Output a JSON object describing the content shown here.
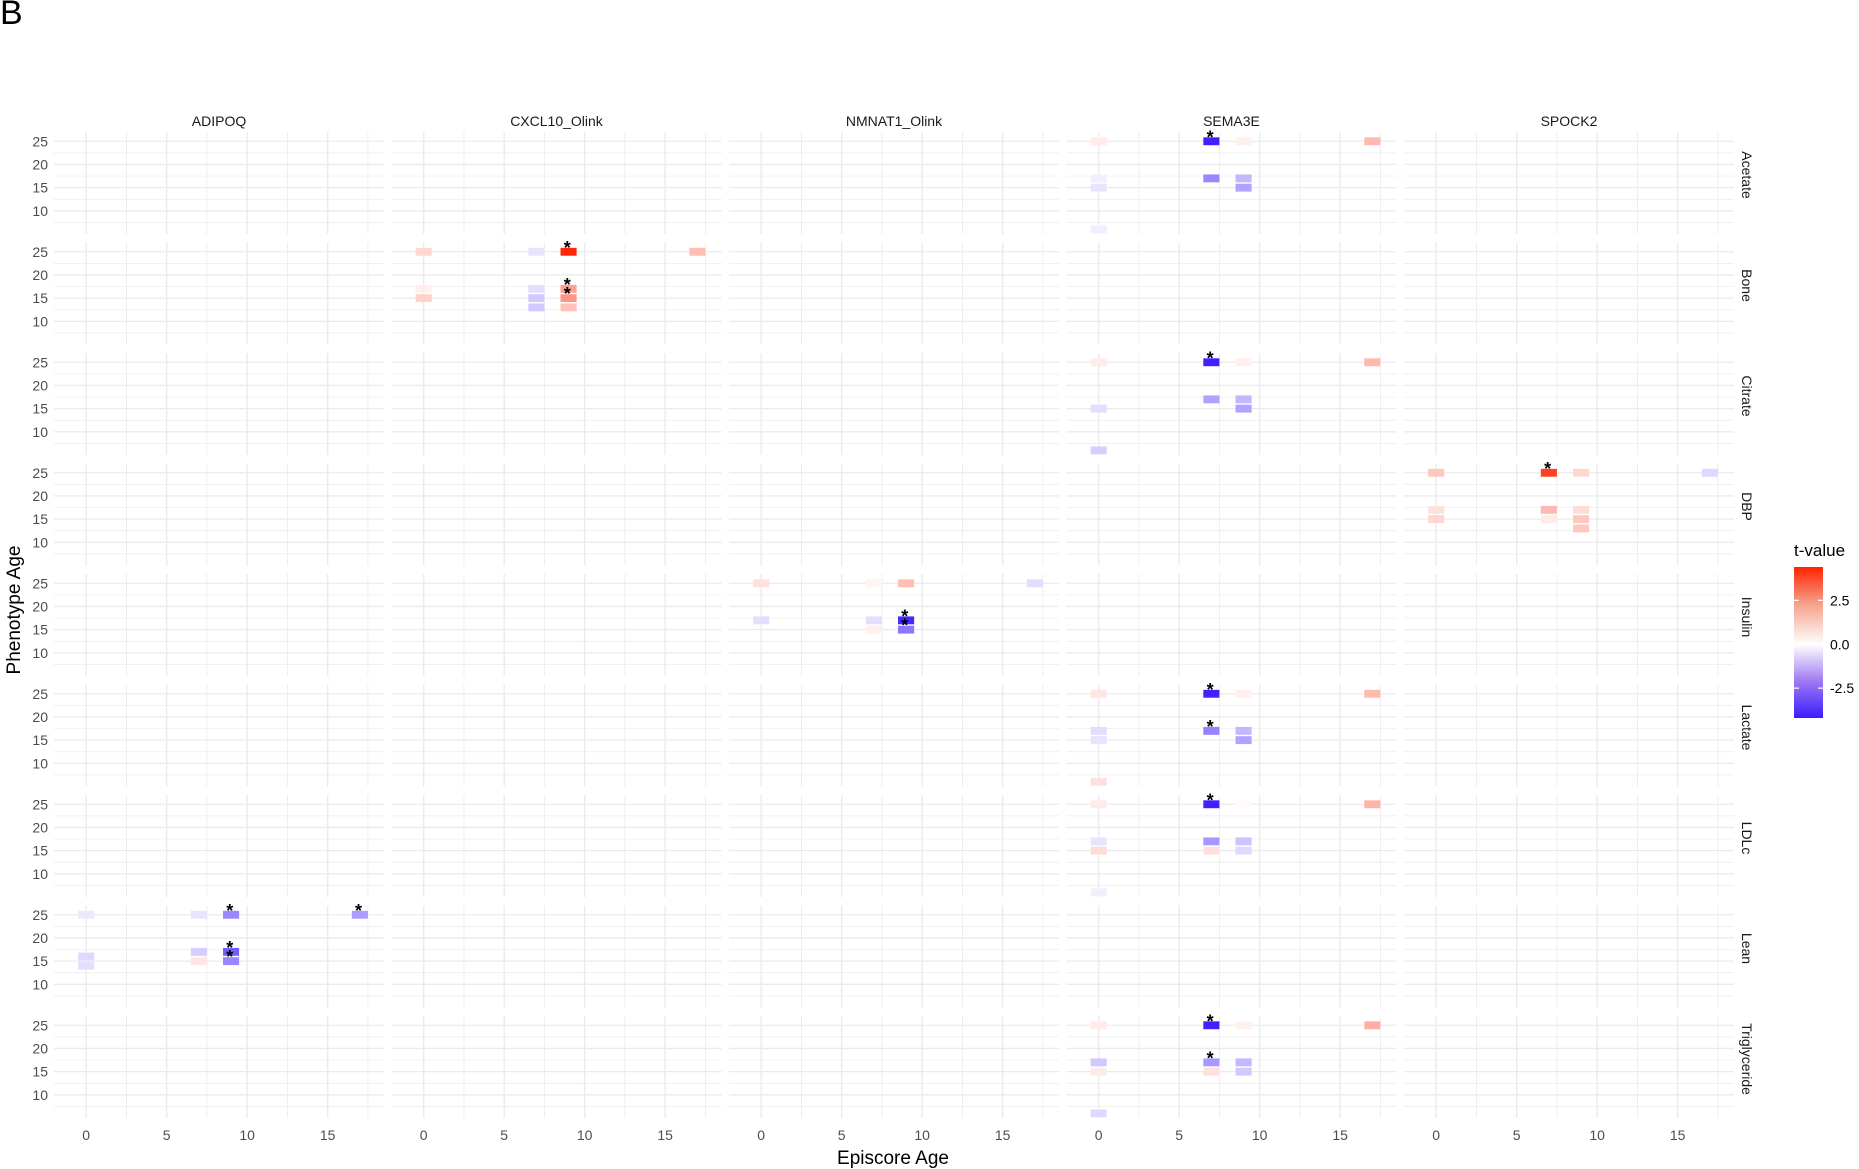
{
  "panel_label": "B",
  "chart_data": {
    "type": "heatmap",
    "xlabel": "Episcore Age",
    "ylabel": "Phenotype Age",
    "x_ticks": [
      0,
      5,
      10,
      15
    ],
    "y_ticks": [
      10,
      15,
      20,
      25
    ],
    "xlim": [
      -2,
      18.5
    ],
    "ylim": [
      5,
      27
    ],
    "x_grid_values": [
      0,
      2.5,
      5,
      7.5,
      10,
      12.5,
      15,
      17.5
    ],
    "y_grid_values": [
      7.5,
      10,
      12.5,
      15,
      17.5,
      20,
      22.5,
      25
    ],
    "column_facets": [
      "ADIPOQ",
      "CXCL10_Olink",
      "NMNAT1_Olink",
      "SEMA3E",
      "SPOCK2"
    ],
    "row_facets": [
      "Acetate",
      "Bone",
      "Citrate",
      "DBP",
      "Insulin",
      "Lactate",
      "LDLc",
      "Lean",
      "Triglyceride"
    ],
    "legend": {
      "title": "t-value",
      "ticks": [
        -2.5,
        0.0,
        2.5
      ],
      "tick_labels": [
        "-2.5",
        "0.0",
        "2.5"
      ],
      "range": [
        -4.2,
        4.4
      ],
      "low_color": "#3B1BFF",
      "mid_color": "#FFFFFF",
      "high_color": "#FF2200",
      "placement": "right"
    },
    "tiles": [
      {
        "col": "ADIPOQ",
        "row": "Lean",
        "x": 0,
        "y": 25,
        "t": -0.4,
        "sig": false
      },
      {
        "col": "ADIPOQ",
        "row": "Lean",
        "x": 0,
        "y": 16,
        "t": -0.7,
        "sig": false
      },
      {
        "col": "ADIPOQ",
        "row": "Lean",
        "x": 0,
        "y": 14,
        "t": -0.6,
        "sig": false
      },
      {
        "col": "ADIPOQ",
        "row": "Lean",
        "x": 7,
        "y": 25,
        "t": -0.5,
        "sig": false
      },
      {
        "col": "ADIPOQ",
        "row": "Lean",
        "x": 7,
        "y": 17,
        "t": -0.9,
        "sig": false
      },
      {
        "col": "ADIPOQ",
        "row": "Lean",
        "x": 7,
        "y": 15,
        "t": 0.5,
        "sig": false
      },
      {
        "col": "ADIPOQ",
        "row": "Lean",
        "x": 9,
        "y": 25,
        "t": -2.2,
        "sig": true
      },
      {
        "col": "ADIPOQ",
        "row": "Lean",
        "x": 9,
        "y": 17,
        "t": -3.0,
        "sig": true
      },
      {
        "col": "ADIPOQ",
        "row": "Lean",
        "x": 9,
        "y": 15,
        "t": -2.2,
        "sig": true
      },
      {
        "col": "ADIPOQ",
        "row": "Lean",
        "x": 17,
        "y": 25,
        "t": -1.8,
        "sig": true
      },
      {
        "col": "CXCL10_Olink",
        "row": "Bone",
        "x": 0,
        "y": 25,
        "t": 0.8,
        "sig": false
      },
      {
        "col": "CXCL10_Olink",
        "row": "Bone",
        "x": 0,
        "y": 17,
        "t": 0.3,
        "sig": false
      },
      {
        "col": "CXCL10_Olink",
        "row": "Bone",
        "x": 0,
        "y": 15,
        "t": 0.9,
        "sig": false
      },
      {
        "col": "CXCL10_Olink",
        "row": "Bone",
        "x": 7,
        "y": 25,
        "t": -0.5,
        "sig": false
      },
      {
        "col": "CXCL10_Olink",
        "row": "Bone",
        "x": 7,
        "y": 17,
        "t": -0.6,
        "sig": false
      },
      {
        "col": "CXCL10_Olink",
        "row": "Bone",
        "x": 7,
        "y": 15,
        "t": -1.0,
        "sig": false
      },
      {
        "col": "CXCL10_Olink",
        "row": "Bone",
        "x": 7,
        "y": 13,
        "t": -1.0,
        "sig": false
      },
      {
        "col": "CXCL10_Olink",
        "row": "Bone",
        "x": 9,
        "y": 25,
        "t": 4.3,
        "sig": true
      },
      {
        "col": "CXCL10_Olink",
        "row": "Bone",
        "x": 9,
        "y": 17,
        "t": 1.9,
        "sig": true
      },
      {
        "col": "CXCL10_Olink",
        "row": "Bone",
        "x": 9,
        "y": 15,
        "t": 2.1,
        "sig": true
      },
      {
        "col": "CXCL10_Olink",
        "row": "Bone",
        "x": 9,
        "y": 13,
        "t": 1.2,
        "sig": false
      },
      {
        "col": "CXCL10_Olink",
        "row": "Bone",
        "x": 17,
        "y": 25,
        "t": 1.3,
        "sig": false
      },
      {
        "col": "NMNAT1_Olink",
        "row": "Insulin",
        "x": 0,
        "y": 25,
        "t": 0.6,
        "sig": false
      },
      {
        "col": "NMNAT1_Olink",
        "row": "Insulin",
        "x": 0,
        "y": 17,
        "t": -0.6,
        "sig": false
      },
      {
        "col": "NMNAT1_Olink",
        "row": "Insulin",
        "x": 7,
        "y": 25,
        "t": 0.2,
        "sig": false
      },
      {
        "col": "NMNAT1_Olink",
        "row": "Insulin",
        "x": 7,
        "y": 17,
        "t": -0.6,
        "sig": false
      },
      {
        "col": "NMNAT1_Olink",
        "row": "Insulin",
        "x": 7,
        "y": 15,
        "t": 0.3,
        "sig": false
      },
      {
        "col": "NMNAT1_Olink",
        "row": "Insulin",
        "x": 9,
        "y": 25,
        "t": 1.3,
        "sig": false
      },
      {
        "col": "NMNAT1_Olink",
        "row": "Insulin",
        "x": 9,
        "y": 17,
        "t": -4.0,
        "sig": true
      },
      {
        "col": "NMNAT1_Olink",
        "row": "Insulin",
        "x": 9,
        "y": 15,
        "t": -2.5,
        "sig": true
      },
      {
        "col": "NMNAT1_Olink",
        "row": "Insulin",
        "x": 17,
        "y": 25,
        "t": -0.6,
        "sig": false
      },
      {
        "col": "SEMA3E",
        "row": "Acetate",
        "x": 0,
        "y": 25,
        "t": 0.4,
        "sig": false
      },
      {
        "col": "SEMA3E",
        "row": "Acetate",
        "x": 0,
        "y": 17,
        "t": -0.3,
        "sig": false
      },
      {
        "col": "SEMA3E",
        "row": "Acetate",
        "x": 0,
        "y": 15,
        "t": -0.5,
        "sig": false
      },
      {
        "col": "SEMA3E",
        "row": "Acetate",
        "x": 0,
        "y": 6,
        "t": -0.3,
        "sig": false
      },
      {
        "col": "SEMA3E",
        "row": "Acetate",
        "x": 7,
        "y": 25,
        "t": -4.1,
        "sig": true
      },
      {
        "col": "SEMA3E",
        "row": "Acetate",
        "x": 7,
        "y": 17,
        "t": -2.2,
        "sig": false
      },
      {
        "col": "SEMA3E",
        "row": "Acetate",
        "x": 9,
        "y": 25,
        "t": 0.3,
        "sig": false
      },
      {
        "col": "SEMA3E",
        "row": "Acetate",
        "x": 9,
        "y": 17,
        "t": -1.3,
        "sig": false
      },
      {
        "col": "SEMA3E",
        "row": "Acetate",
        "x": 9,
        "y": 15,
        "t": -1.7,
        "sig": false
      },
      {
        "col": "SEMA3E",
        "row": "Acetate",
        "x": 17,
        "y": 25,
        "t": 1.4,
        "sig": false
      },
      {
        "col": "SEMA3E",
        "row": "Citrate",
        "x": 0,
        "y": 25,
        "t": 0.4,
        "sig": false
      },
      {
        "col": "SEMA3E",
        "row": "Citrate",
        "x": 0,
        "y": 15,
        "t": -0.6,
        "sig": false
      },
      {
        "col": "SEMA3E",
        "row": "Citrate",
        "x": 0,
        "y": 6,
        "t": -0.9,
        "sig": false
      },
      {
        "col": "SEMA3E",
        "row": "Citrate",
        "x": 7,
        "y": 25,
        "t": -4.1,
        "sig": true
      },
      {
        "col": "SEMA3E",
        "row": "Citrate",
        "x": 7,
        "y": 17,
        "t": -1.7,
        "sig": false
      },
      {
        "col": "SEMA3E",
        "row": "Citrate",
        "x": 9,
        "y": 25,
        "t": 0.3,
        "sig": false
      },
      {
        "col": "SEMA3E",
        "row": "Citrate",
        "x": 9,
        "y": 17,
        "t": -1.3,
        "sig": false
      },
      {
        "col": "SEMA3E",
        "row": "Citrate",
        "x": 9,
        "y": 15,
        "t": -1.7,
        "sig": false
      },
      {
        "col": "SEMA3E",
        "row": "Citrate",
        "x": 17,
        "y": 25,
        "t": 1.4,
        "sig": false
      },
      {
        "col": "SEMA3E",
        "row": "Lactate",
        "x": 0,
        "y": 25,
        "t": 0.5,
        "sig": false
      },
      {
        "col": "SEMA3E",
        "row": "Lactate",
        "x": 0,
        "y": 17,
        "t": -0.6,
        "sig": false
      },
      {
        "col": "SEMA3E",
        "row": "Lactate",
        "x": 0,
        "y": 15,
        "t": -0.5,
        "sig": false
      },
      {
        "col": "SEMA3E",
        "row": "Lactate",
        "x": 0,
        "y": 6,
        "t": 0.6,
        "sig": false
      },
      {
        "col": "SEMA3E",
        "row": "Lactate",
        "x": 7,
        "y": 25,
        "t": -4.1,
        "sig": true
      },
      {
        "col": "SEMA3E",
        "row": "Lactate",
        "x": 7,
        "y": 17,
        "t": -2.3,
        "sig": true
      },
      {
        "col": "SEMA3E",
        "row": "Lactate",
        "x": 9,
        "y": 25,
        "t": 0.3,
        "sig": false
      },
      {
        "col": "SEMA3E",
        "row": "Lactate",
        "x": 9,
        "y": 17,
        "t": -1.3,
        "sig": false
      },
      {
        "col": "SEMA3E",
        "row": "Lactate",
        "x": 9,
        "y": 15,
        "t": -1.7,
        "sig": false
      },
      {
        "col": "SEMA3E",
        "row": "Lactate",
        "x": 17,
        "y": 25,
        "t": 1.4,
        "sig": false
      },
      {
        "col": "SEMA3E",
        "row": "LDLc",
        "x": 0,
        "y": 25,
        "t": 0.4,
        "sig": false
      },
      {
        "col": "SEMA3E",
        "row": "LDLc",
        "x": 0,
        "y": 17,
        "t": -0.5,
        "sig": false
      },
      {
        "col": "SEMA3E",
        "row": "LDLc",
        "x": 0,
        "y": 15,
        "t": 0.7,
        "sig": false
      },
      {
        "col": "SEMA3E",
        "row": "LDLc",
        "x": 0,
        "y": 6,
        "t": -0.3,
        "sig": false
      },
      {
        "col": "SEMA3E",
        "row": "LDLc",
        "x": 7,
        "y": 25,
        "t": -4.1,
        "sig": true
      },
      {
        "col": "SEMA3E",
        "row": "LDLc",
        "x": 7,
        "y": 17,
        "t": -1.9,
        "sig": false
      },
      {
        "col": "SEMA3E",
        "row": "LDLc",
        "x": 7,
        "y": 15,
        "t": 0.6,
        "sig": false
      },
      {
        "col": "SEMA3E",
        "row": "LDLc",
        "x": 9,
        "y": 25,
        "t": 0.1,
        "sig": false
      },
      {
        "col": "SEMA3E",
        "row": "LDLc",
        "x": 9,
        "y": 17,
        "t": -1.1,
        "sig": false
      },
      {
        "col": "SEMA3E",
        "row": "LDLc",
        "x": 9,
        "y": 15,
        "t": -0.7,
        "sig": false
      },
      {
        "col": "SEMA3E",
        "row": "LDLc",
        "x": 17,
        "y": 25,
        "t": 1.5,
        "sig": false
      },
      {
        "col": "SEMA3E",
        "row": "Triglyceride",
        "x": 0,
        "y": 25,
        "t": 0.4,
        "sig": false
      },
      {
        "col": "SEMA3E",
        "row": "Triglyceride",
        "x": 0,
        "y": 17,
        "t": -1.0,
        "sig": false
      },
      {
        "col": "SEMA3E",
        "row": "Triglyceride",
        "x": 0,
        "y": 15,
        "t": 0.4,
        "sig": false
      },
      {
        "col": "SEMA3E",
        "row": "Triglyceride",
        "x": 0,
        "y": 6,
        "t": -0.7,
        "sig": false
      },
      {
        "col": "SEMA3E",
        "row": "Triglyceride",
        "x": 7,
        "y": 25,
        "t": -4.1,
        "sig": true
      },
      {
        "col": "SEMA3E",
        "row": "Triglyceride",
        "x": 7,
        "y": 17,
        "t": -1.9,
        "sig": true
      },
      {
        "col": "SEMA3E",
        "row": "Triglyceride",
        "x": 7,
        "y": 15,
        "t": 0.6,
        "sig": false
      },
      {
        "col": "SEMA3E",
        "row": "Triglyceride",
        "x": 9,
        "y": 25,
        "t": 0.3,
        "sig": false
      },
      {
        "col": "SEMA3E",
        "row": "Triglyceride",
        "x": 9,
        "y": 17,
        "t": -1.3,
        "sig": false
      },
      {
        "col": "SEMA3E",
        "row": "Triglyceride",
        "x": 9,
        "y": 15,
        "t": -1.0,
        "sig": false
      },
      {
        "col": "SEMA3E",
        "row": "Triglyceride",
        "x": 17,
        "y": 25,
        "t": 1.6,
        "sig": false
      },
      {
        "col": "SPOCK2",
        "row": "DBP",
        "x": 0,
        "y": 25,
        "t": 1.1,
        "sig": false
      },
      {
        "col": "SPOCK2",
        "row": "DBP",
        "x": 0,
        "y": 17,
        "t": 0.6,
        "sig": false
      },
      {
        "col": "SPOCK2",
        "row": "DBP",
        "x": 0,
        "y": 15,
        "t": 0.8,
        "sig": false
      },
      {
        "col": "SPOCK2",
        "row": "DBP",
        "x": 7,
        "y": 25,
        "t": 3.8,
        "sig": true
      },
      {
        "col": "SPOCK2",
        "row": "DBP",
        "x": 7,
        "y": 17,
        "t": 1.4,
        "sig": false
      },
      {
        "col": "SPOCK2",
        "row": "DBP",
        "x": 7,
        "y": 15,
        "t": 0.4,
        "sig": false
      },
      {
        "col": "SPOCK2",
        "row": "DBP",
        "x": 9,
        "y": 25,
        "t": 0.8,
        "sig": false
      },
      {
        "col": "SPOCK2",
        "row": "DBP",
        "x": 9,
        "y": 17,
        "t": 0.7,
        "sig": false
      },
      {
        "col": "SPOCK2",
        "row": "DBP",
        "x": 9,
        "y": 15,
        "t": 1.1,
        "sig": false
      },
      {
        "col": "SPOCK2",
        "row": "DBP",
        "x": 9,
        "y": 13,
        "t": 1.1,
        "sig": false
      },
      {
        "col": "SPOCK2",
        "row": "DBP",
        "x": 17,
        "y": 25,
        "t": -0.7,
        "sig": false
      }
    ]
  }
}
